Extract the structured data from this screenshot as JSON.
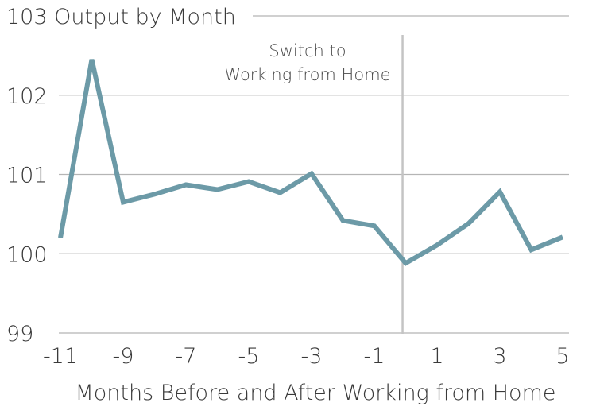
{
  "chart_data": {
    "type": "line",
    "title": "",
    "xlabel": "Months Before and After Working from Home",
    "ylabel": "",
    "x": [
      -11,
      -10,
      -9,
      -8,
      -7,
      -6,
      -5,
      -4,
      -3,
      -2,
      -1,
      0,
      1,
      2,
      3,
      4,
      5
    ],
    "series": [
      {
        "name": "",
        "values": [
          100.2,
          102.45,
          100.65,
          100.75,
          100.87,
          100.81,
          100.91,
          100.77,
          101.01,
          100.42,
          100.35,
          99.88,
          100.11,
          100.38,
          100.78,
          100.05,
          100.21
        ]
      }
    ],
    "xlim": [
      -11,
      5
    ],
    "ylim": [
      99,
      103
    ],
    "x_ticks": [
      -11,
      -9,
      -7,
      -5,
      -3,
      -1,
      1,
      3,
      5
    ],
    "x_tick_labels": [
      "-11",
      "-9",
      "-7",
      "-5",
      "-3",
      "-1",
      "1",
      "3",
      "5"
    ],
    "y_ticks": [
      99,
      100,
      101,
      102,
      103
    ],
    "y_tick_labels": [
      "99",
      "100",
      "101",
      "102",
      "103 Output by Month"
    ],
    "grid": true,
    "annotation": {
      "x": -0.1,
      "lines": [
        "Switch to",
        "Working from Home"
      ]
    },
    "colors": {
      "line": "#6c9aa7",
      "grid": "#b5b5b5",
      "marker_line": "#c4c4c4",
      "text": "#3a3a3a"
    }
  }
}
